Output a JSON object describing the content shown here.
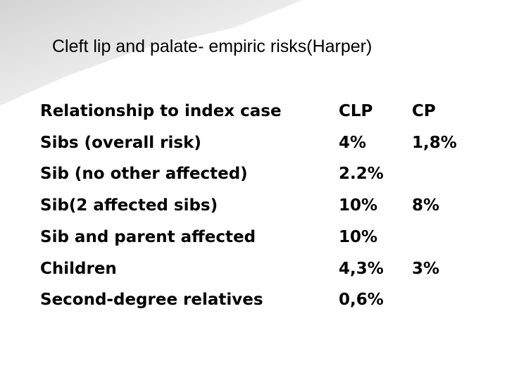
{
  "title": "Cleft lip and palate- empiric risks(Harper)",
  "table": {
    "header": {
      "relationship": "Relationship to index case",
      "clp": "CLP",
      "cp": "CP"
    },
    "rows": [
      {
        "relationship": "Sibs (overall risk)",
        "clp": "4%",
        "cp": "1,8%"
      },
      {
        "relationship": "Sib (no other affected)",
        "clp": "2.2%"
      },
      {
        "relationship": "Sib(2 affected sibs)",
        "clp": "10%",
        "cp": "8%"
      },
      {
        "relationship": "Sib and parent affected",
        "clp": "10%"
      },
      {
        "relationship": "Children",
        "clp": "4,3%",
        "cp": "3%"
      },
      {
        "relationship": "Second-degree relatives",
        "clp": "0,6%"
      }
    ]
  }
}
